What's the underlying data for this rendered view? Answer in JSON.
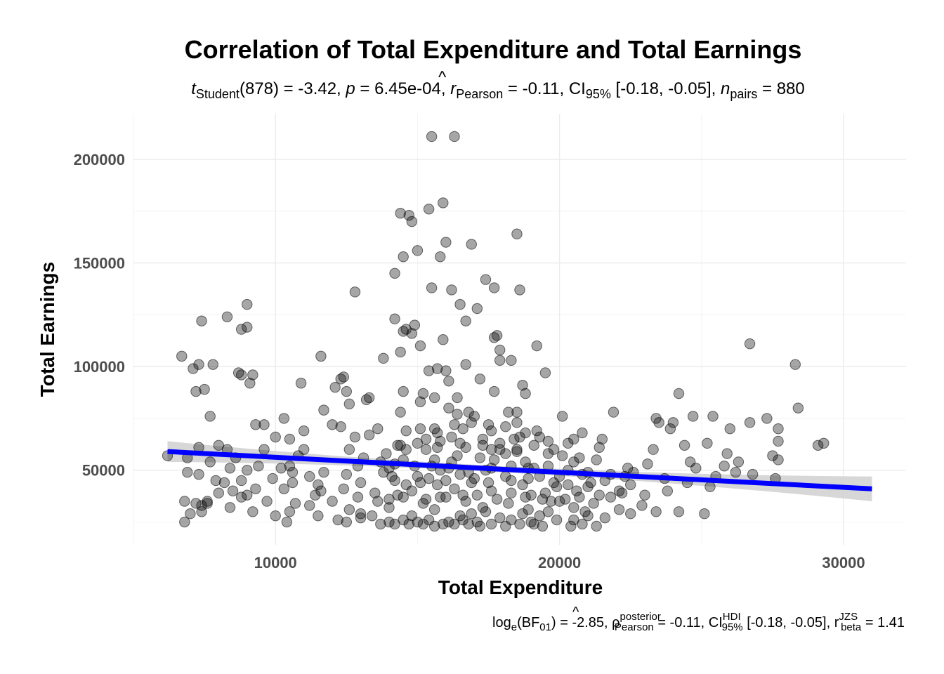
{
  "chart_data": {
    "type": "scatter",
    "title": "Correlation of Total Expenditure and Total Earnings",
    "subtitle": {
      "t_letter": "t",
      "t_sub": "Student",
      "t_stat": "(878) = -3.42, ",
      "p_letter": "p",
      "p_stat": " = 6.45e-04, ",
      "r_letter": "r",
      "r_hat": "^",
      "r_sub": "Pearson",
      "r_stat": " = -0.11, CI",
      "ci_sub": "95%",
      "ci_stat": " [-0.18, -0.05], ",
      "n_letter": "n",
      "n_sub": "pairs",
      "n_stat": " = 880"
    },
    "caption": {
      "log_text": "log",
      "log_sub": "e",
      "bf_text": "(BF",
      "bf_sub": "01",
      "bf_stat": ") = -2.85, ",
      "rho_letter": "ρ",
      "rho_hat": "^",
      "rho_sup": "posterior",
      "rho_sub": "Pearson",
      "rho_stat": " = -0.11, CI",
      "ci_sup": "HDI",
      "ci_sub": "95%",
      "ci_stat": " [-0.18, -0.05], ",
      "r_letter": "r",
      "r_sup": "JZS",
      "r_sub": "beta",
      "r_stat": " = 1.41"
    },
    "xlabel": "Total Expenditure",
    "ylabel": "Total Earnings",
    "xlim": [
      5000,
      32200
    ],
    "ylim": [
      14000,
      222000
    ],
    "x_ticks": [
      {
        "value": 10000,
        "label": "10000"
      },
      {
        "value": 20000,
        "label": "20000"
      },
      {
        "value": 30000,
        "label": "30000"
      }
    ],
    "y_ticks": [
      {
        "value": 50000,
        "label": "50000"
      },
      {
        "value": 100000,
        "label": "100000"
      },
      {
        "value": 150000,
        "label": "150000"
      },
      {
        "value": 200000,
        "label": "200000"
      }
    ],
    "grid": true,
    "point_color": "#000000",
    "regression": {
      "color": "#0000ff",
      "band_color": "#d3d3d3",
      "x_start": 6200,
      "x_end": 31000,
      "y_start": 59000,
      "y_end": 41000,
      "band_halfwidth_start": 5000,
      "band_halfwidth_mid": 1500,
      "band_halfwidth_end": 6000
    },
    "points": [
      [
        15500,
        211000
      ],
      [
        16300,
        211000
      ],
      [
        15900,
        179000
      ],
      [
        15400,
        176000
      ],
      [
        14400,
        174000
      ],
      [
        14700,
        173000
      ],
      [
        14800,
        170000
      ],
      [
        18500,
        164000
      ],
      [
        16000,
        160000
      ],
      [
        16900,
        159000
      ],
      [
        15000,
        156000
      ],
      [
        14500,
        153000
      ],
      [
        15800,
        153000
      ],
      [
        14200,
        145000
      ],
      [
        17400,
        142000
      ],
      [
        15500,
        138000
      ],
      [
        16200,
        137000
      ],
      [
        17700,
        138000
      ],
      [
        18600,
        137000
      ],
      [
        12800,
        136000
      ],
      [
        16500,
        130000
      ],
      [
        17100,
        128000
      ],
      [
        9000,
        130000
      ],
      [
        7400,
        122000
      ],
      [
        8300,
        124000
      ],
      [
        8800,
        118000
      ],
      [
        9000,
        119000
      ],
      [
        14200,
        123000
      ],
      [
        14600,
        118000
      ],
      [
        14900,
        120000
      ],
      [
        16700,
        122000
      ],
      [
        17800,
        115000
      ],
      [
        17700,
        114000
      ],
      [
        14500,
        117000
      ],
      [
        14800,
        116000
      ],
      [
        15900,
        113000
      ],
      [
        19200,
        110000
      ],
      [
        15100,
        110000
      ],
      [
        17900,
        108000
      ],
      [
        14400,
        107000
      ],
      [
        26700,
        111000
      ],
      [
        28300,
        101000
      ],
      [
        6700,
        105000
      ],
      [
        11600,
        105000
      ],
      [
        13800,
        104000
      ],
      [
        17900,
        103000
      ],
      [
        18300,
        103000
      ],
      [
        7300,
        101000
      ],
      [
        7800,
        101000
      ],
      [
        7100,
        99000
      ],
      [
        15400,
        98000
      ],
      [
        15700,
        99000
      ],
      [
        16000,
        98000
      ],
      [
        16700,
        101000
      ],
      [
        19500,
        97000
      ],
      [
        8700,
        97000
      ],
      [
        8800,
        96000
      ],
      [
        9200,
        96000
      ],
      [
        9100,
        92000
      ],
      [
        10900,
        92000
      ],
      [
        16100,
        93000
      ],
      [
        17200,
        94000
      ],
      [
        18700,
        91000
      ],
      [
        12300,
        94000
      ],
      [
        12400,
        95000
      ],
      [
        12100,
        90000
      ],
      [
        7200,
        88000
      ],
      [
        7500,
        89000
      ],
      [
        12500,
        88000
      ],
      [
        14500,
        88000
      ],
      [
        15200,
        87000
      ],
      [
        15600,
        85000
      ],
      [
        16400,
        85000
      ],
      [
        17700,
        88000
      ],
      [
        18800,
        87000
      ],
      [
        24200,
        87000
      ],
      [
        13200,
        84000
      ],
      [
        13300,
        85000
      ],
      [
        15100,
        83000
      ],
      [
        12600,
        82000
      ],
      [
        11700,
        79000
      ],
      [
        14400,
        78000
      ],
      [
        16100,
        80000
      ],
      [
        16800,
        78000
      ],
      [
        18200,
        78000
      ],
      [
        18500,
        78000
      ],
      [
        21900,
        78000
      ],
      [
        28400,
        80000
      ],
      [
        7700,
        76000
      ],
      [
        10300,
        75000
      ],
      [
        20100,
        76000
      ],
      [
        24700,
        76000
      ],
      [
        25400,
        76000
      ],
      [
        27300,
        75000
      ],
      [
        23400,
        75000
      ],
      [
        9300,
        72000
      ],
      [
        9600,
        72000
      ],
      [
        11000,
        69000
      ],
      [
        12000,
        72000
      ],
      [
        12300,
        71000
      ],
      [
        26700,
        73000
      ],
      [
        27700,
        70000
      ],
      [
        26000,
        70000
      ],
      [
        23900,
        70000
      ],
      [
        13600,
        70000
      ],
      [
        14600,
        69000
      ],
      [
        15100,
        70000
      ],
      [
        16600,
        70000
      ],
      [
        17600,
        69000
      ],
      [
        18800,
        68000
      ],
      [
        19200,
        69000
      ],
      [
        20800,
        68000
      ],
      [
        24000,
        73000
      ],
      [
        23500,
        73000
      ],
      [
        10000,
        66000
      ],
      [
        10500,
        65000
      ],
      [
        12800,
        66000
      ],
      [
        13300,
        67000
      ],
      [
        15300,
        65000
      ],
      [
        16200,
        66000
      ],
      [
        17300,
        65000
      ],
      [
        18400,
        65000
      ],
      [
        19600,
        64000
      ],
      [
        20500,
        65000
      ],
      [
        21500,
        65000
      ],
      [
        25200,
        63000
      ],
      [
        27700,
        64000
      ],
      [
        29300,
        63000
      ],
      [
        29100,
        62000
      ],
      [
        7300,
        61000
      ],
      [
        8000,
        62000
      ],
      [
        8300,
        60000
      ],
      [
        9600,
        60000
      ],
      [
        11000,
        60000
      ],
      [
        12600,
        60000
      ],
      [
        14600,
        60000
      ],
      [
        16700,
        61000
      ],
      [
        17600,
        60000
      ],
      [
        19800,
        60000
      ],
      [
        21400,
        61000
      ],
      [
        23300,
        60000
      ],
      [
        24400,
        62000
      ],
      [
        25900,
        58000
      ],
      [
        27500,
        57000
      ],
      [
        27700,
        55000
      ],
      [
        6200,
        57000
      ],
      [
        6900,
        56000
      ],
      [
        7700,
        54000
      ],
      [
        8600,
        56000
      ],
      [
        10800,
        57000
      ],
      [
        13100,
        56000
      ],
      [
        14500,
        55000
      ],
      [
        16200,
        54000
      ],
      [
        17700,
        55000
      ],
      [
        18800,
        54000
      ],
      [
        20500,
        54000
      ],
      [
        22400,
        51000
      ],
      [
        23100,
        53000
      ],
      [
        24600,
        54000
      ],
      [
        26300,
        54000
      ],
      [
        8400,
        51000
      ],
      [
        9400,
        52000
      ],
      [
        10200,
        51000
      ],
      [
        10500,
        52000
      ],
      [
        11700,
        49000
      ],
      [
        12900,
        52000
      ],
      [
        14000,
        51000
      ],
      [
        15500,
        52000
      ],
      [
        17400,
        50000
      ],
      [
        19100,
        51000
      ],
      [
        20800,
        48000
      ],
      [
        22600,
        49000
      ],
      [
        24800,
        51000
      ],
      [
        25800,
        52000
      ],
      [
        26200,
        49000
      ],
      [
        6900,
        49000
      ],
      [
        7300,
        48000
      ],
      [
        9000,
        50000
      ],
      [
        10600,
        49000
      ],
      [
        11200,
        47000
      ],
      [
        12500,
        48000
      ],
      [
        13800,
        49000
      ],
      [
        15000,
        47000
      ],
      [
        16500,
        48000
      ],
      [
        18100,
        47000
      ],
      [
        20000,
        47000
      ],
      [
        21600,
        45000
      ],
      [
        23700,
        46000
      ],
      [
        25500,
        47000
      ],
      [
        26800,
        48000
      ],
      [
        27600,
        46000
      ],
      [
        7900,
        45000
      ],
      [
        8200,
        44000
      ],
      [
        8800,
        45000
      ],
      [
        9900,
        46000
      ],
      [
        10600,
        44000
      ],
      [
        11500,
        43000
      ],
      [
        13000,
        44000
      ],
      [
        14200,
        45000
      ],
      [
        15700,
        43000
      ],
      [
        16900,
        44000
      ],
      [
        18700,
        43000
      ],
      [
        19800,
        44000
      ],
      [
        21000,
        42000
      ],
      [
        22500,
        43000
      ],
      [
        24500,
        44000
      ],
      [
        25300,
        42000
      ],
      [
        8500,
        40000
      ],
      [
        9300,
        41000
      ],
      [
        10300,
        41000
      ],
      [
        11600,
        40000
      ],
      [
        12400,
        41000
      ],
      [
        13500,
        39000
      ],
      [
        14800,
        40000
      ],
      [
        16300,
        41000
      ],
      [
        17600,
        40000
      ],
      [
        19500,
        39000
      ],
      [
        20600,
        40000
      ],
      [
        22100,
        40000
      ],
      [
        23800,
        40000
      ],
      [
        8000,
        39000
      ],
      [
        9000,
        38000
      ],
      [
        11400,
        38000
      ],
      [
        12900,
        37000
      ],
      [
        14300,
        38000
      ],
      [
        15800,
        37000
      ],
      [
        17100,
        38000
      ],
      [
        18800,
        37000
      ],
      [
        20200,
        36000
      ],
      [
        21800,
        37000
      ],
      [
        23000,
        38000
      ],
      [
        6800,
        35000
      ],
      [
        7200,
        34000
      ],
      [
        7600,
        35000
      ],
      [
        8800,
        37000
      ],
      [
        9700,
        35000
      ],
      [
        10700,
        34000
      ],
      [
        12000,
        35000
      ],
      [
        13600,
        35000
      ],
      [
        15200,
        34000
      ],
      [
        16700,
        35000
      ],
      [
        18200,
        34000
      ],
      [
        19700,
        35000
      ],
      [
        21200,
        34000
      ],
      [
        22900,
        33000
      ],
      [
        7400,
        33000
      ],
      [
        7600,
        34000
      ],
      [
        8400,
        32000
      ],
      [
        11200,
        33000
      ],
      [
        12600,
        31000
      ],
      [
        14000,
        32000
      ],
      [
        15600,
        31000
      ],
      [
        17300,
        32000
      ],
      [
        18900,
        31000
      ],
      [
        20500,
        32000
      ],
      [
        22100,
        31000
      ],
      [
        23400,
        30000
      ],
      [
        7000,
        29000
      ],
      [
        7400,
        30000
      ],
      [
        9200,
        30000
      ],
      [
        10000,
        28000
      ],
      [
        10500,
        30000
      ],
      [
        11500,
        28000
      ],
      [
        13000,
        27000
      ],
      [
        14800,
        28000
      ],
      [
        16500,
        28000
      ],
      [
        17900,
        27000
      ],
      [
        19300,
        28000
      ],
      [
        21000,
        28000
      ],
      [
        22500,
        29000
      ],
      [
        24200,
        30000
      ],
      [
        25100,
        29000
      ],
      [
        6800,
        25000
      ],
      [
        10400,
        25000
      ],
      [
        12200,
        26000
      ],
      [
        12500,
        25000
      ],
      [
        13700,
        24000
      ],
      [
        14200,
        24000
      ],
      [
        14700,
        24000
      ],
      [
        15200,
        24000
      ],
      [
        15600,
        23000
      ],
      [
        15900,
        24000
      ],
      [
        16300,
        24000
      ],
      [
        16800,
        24000
      ],
      [
        17200,
        23000
      ],
      [
        17600,
        24000
      ],
      [
        18100,
        23000
      ],
      [
        18600,
        24000
      ],
      [
        19100,
        24000
      ],
      [
        19400,
        23000
      ],
      [
        20400,
        23000
      ],
      [
        20800,
        24000
      ],
      [
        21300,
        23000
      ],
      [
        14000,
        25000
      ],
      [
        14500,
        26000
      ],
      [
        15000,
        25000
      ],
      [
        15400,
        26000
      ],
      [
        16100,
        25000
      ],
      [
        16600,
        26000
      ],
      [
        17100,
        25000
      ],
      [
        18300,
        26000
      ],
      [
        19000,
        25000
      ],
      [
        19900,
        26000
      ],
      [
        20500,
        26000
      ],
      [
        21600,
        27000
      ],
      [
        13000,
        29000
      ],
      [
        13400,
        28000
      ],
      [
        16900,
        29000
      ],
      [
        17400,
        30000
      ],
      [
        18700,
        29000
      ],
      [
        19600,
        30000
      ],
      [
        20900,
        30000
      ],
      [
        14600,
        43000
      ],
      [
        15100,
        44000
      ],
      [
        15400,
        46000
      ],
      [
        16000,
        45000
      ],
      [
        17000,
        46000
      ],
      [
        17500,
        44000
      ],
      [
        18300,
        45000
      ],
      [
        18900,
        46000
      ],
      [
        19300,
        47000
      ],
      [
        19900,
        42000
      ],
      [
        20300,
        43000
      ],
      [
        21100,
        44000
      ],
      [
        14100,
        47000
      ],
      [
        14900,
        52000
      ],
      [
        15600,
        55000
      ],
      [
        16400,
        57000
      ],
      [
        17200,
        56000
      ],
      [
        18100,
        58000
      ],
      [
        18500,
        60000
      ],
      [
        19100,
        62000
      ],
      [
        19600,
        58000
      ],
      [
        20100,
        57000
      ],
      [
        20700,
        56000
      ],
      [
        21300,
        55000
      ],
      [
        13900,
        58000
      ],
      [
        14300,
        62000
      ],
      [
        15000,
        63000
      ],
      [
        15800,
        64000
      ],
      [
        16500,
        63000
      ],
      [
        17300,
        62000
      ],
      [
        17900,
        63000
      ],
      [
        18600,
        66000
      ],
      [
        19300,
        66000
      ],
      [
        20300,
        63000
      ],
      [
        13700,
        54000
      ],
      [
        14200,
        53000
      ],
      [
        15800,
        50000
      ],
      [
        16100,
        51000
      ],
      [
        16800,
        49000
      ],
      [
        17600,
        51000
      ],
      [
        18300,
        52000
      ],
      [
        18900,
        51000
      ],
      [
        19600,
        52000
      ],
      [
        20300,
        50000
      ],
      [
        21000,
        49000
      ],
      [
        21800,
        48000
      ],
      [
        22300,
        47000
      ],
      [
        14000,
        36000
      ],
      [
        14500,
        37000
      ],
      [
        15300,
        36000
      ],
      [
        16000,
        37000
      ],
      [
        16600,
        38000
      ],
      [
        17800,
        36000
      ],
      [
        18300,
        39000
      ],
      [
        19000,
        38000
      ],
      [
        19400,
        36000
      ],
      [
        20000,
        35000
      ],
      [
        20700,
        37000
      ],
      [
        21400,
        38000
      ],
      [
        22200,
        39000
      ],
      [
        15600,
        70000
      ],
      [
        16300,
        72000
      ],
      [
        16900,
        73000
      ],
      [
        17500,
        72000
      ],
      [
        18100,
        71000
      ],
      [
        18500,
        73000
      ],
      [
        16400,
        77000
      ],
      [
        17000,
        76000
      ],
      [
        15300,
        60000
      ],
      [
        15700,
        61000
      ],
      [
        17900,
        60000
      ],
      [
        18500,
        59000
      ],
      [
        14400,
        62000
      ],
      [
        15700,
        68000
      ]
    ]
  }
}
